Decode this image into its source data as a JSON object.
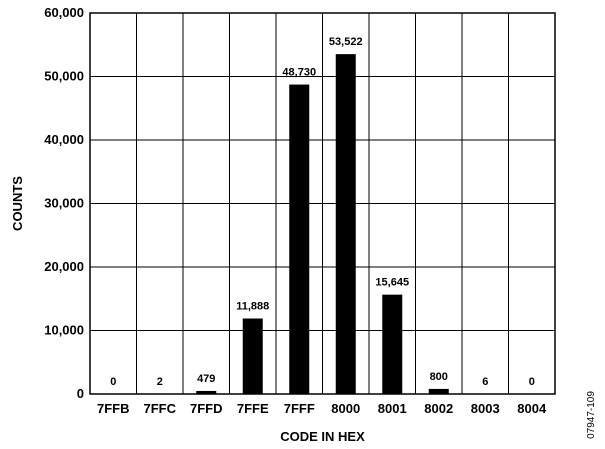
{
  "chart_data": {
    "type": "bar",
    "xlabel": "CODE IN HEX",
    "ylabel": "COUNTS",
    "ylim": [
      0,
      60000
    ],
    "yticks": [
      0,
      10000,
      20000,
      30000,
      40000,
      50000,
      60000
    ],
    "ytick_labels": [
      "0",
      "10,000",
      "20,000",
      "30,000",
      "40,000",
      "50,000",
      "60,000"
    ],
    "grid": true,
    "categories": [
      "7FFB",
      "7FFC",
      "7FFD",
      "7FFE",
      "7FFF",
      "8000",
      "8001",
      "8002",
      "8003",
      "8004"
    ],
    "values": [
      0,
      2,
      479,
      11888,
      48730,
      53522,
      15645,
      800,
      6,
      0
    ],
    "data_labels": [
      "0",
      "2",
      "479",
      "11,888",
      "48,730",
      "53,522",
      "15,645",
      "800",
      "6",
      "0"
    ],
    "bar_color": "#000000",
    "figure_id": "07947-109"
  }
}
